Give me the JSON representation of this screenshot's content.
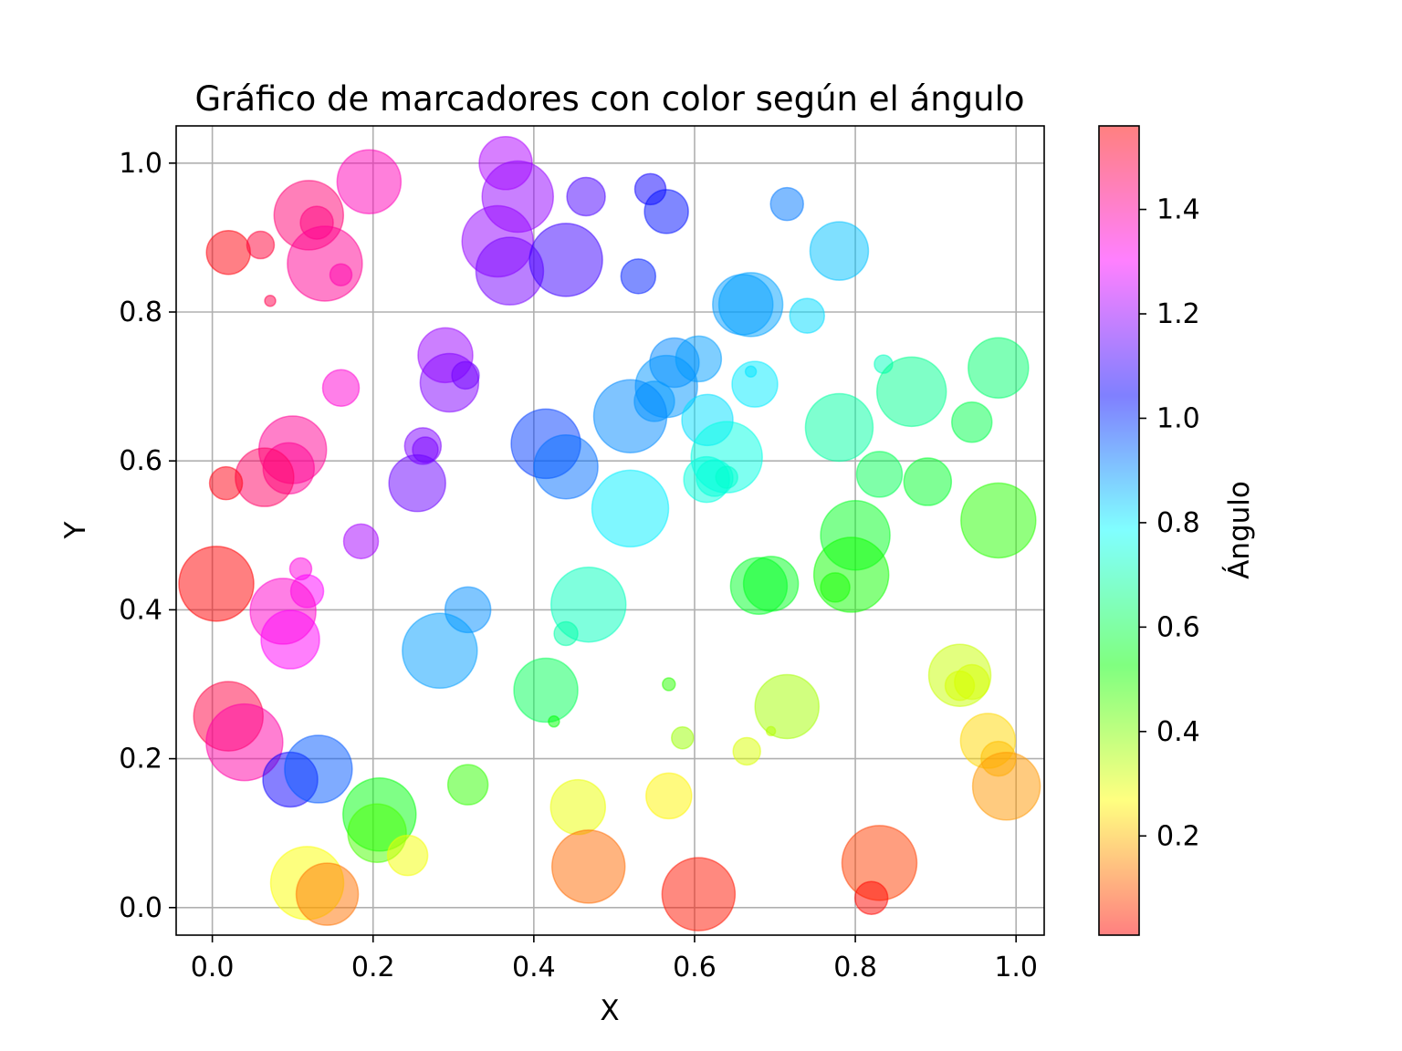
{
  "chart_data": {
    "type": "scatter",
    "title": "Gráfico de marcadores con color según el ángulo",
    "xlabel": "X",
    "ylabel": "Y",
    "xlim": [
      -0.045,
      1.035
    ],
    "ylim": [
      -0.037,
      1.05
    ],
    "xticks": [
      "0.0",
      "0.2",
      "0.4",
      "0.6",
      "0.8",
      "1.0"
    ],
    "yticks": [
      "0.0",
      "0.2",
      "0.4",
      "0.6",
      "0.8",
      "1.0"
    ],
    "grid": true,
    "colorbar": {
      "label": "Ángulo",
      "range": [
        0.01,
        1.56
      ],
      "ticks": [
        "0.2",
        "0.4",
        "0.6",
        "0.8",
        "1.0",
        "1.2",
        "1.4"
      ],
      "colormap": "hsv",
      "alpha": 0.5
    },
    "points": [
      {
        "x": 0.02,
        "y": 0.88,
        "s": 24
      },
      {
        "x": 0.06,
        "y": 0.89,
        "s": 15
      },
      {
        "x": 0.12,
        "y": 0.93,
        "s": 38
      },
      {
        "x": 0.13,
        "y": 0.92,
        "s": 18
      },
      {
        "x": 0.195,
        "y": 0.975,
        "s": 35
      },
      {
        "x": 0.14,
        "y": 0.865,
        "s": 41
      },
      {
        "x": 0.16,
        "y": 0.85,
        "s": 12
      },
      {
        "x": 0.072,
        "y": 0.815,
        "s": 6
      },
      {
        "x": 0.365,
        "y": 1.0,
        "s": 29
      },
      {
        "x": 0.38,
        "y": 0.955,
        "s": 39
      },
      {
        "x": 0.465,
        "y": 0.955,
        "s": 21
      },
      {
        "x": 0.545,
        "y": 0.965,
        "s": 17
      },
      {
        "x": 0.565,
        "y": 0.935,
        "s": 24
      },
      {
        "x": 0.715,
        "y": 0.945,
        "s": 18
      },
      {
        "x": 0.355,
        "y": 0.895,
        "s": 39
      },
      {
        "x": 0.37,
        "y": 0.855,
        "s": 37
      },
      {
        "x": 0.44,
        "y": 0.87,
        "s": 40
      },
      {
        "x": 0.53,
        "y": 0.848,
        "s": 19
      },
      {
        "x": 0.78,
        "y": 0.882,
        "s": 32
      },
      {
        "x": 0.66,
        "y": 0.81,
        "s": 33
      },
      {
        "x": 0.67,
        "y": 0.81,
        "s": 35
      },
      {
        "x": 0.74,
        "y": 0.795,
        "s": 19
      },
      {
        "x": 0.29,
        "y": 0.742,
        "s": 30
      },
      {
        "x": 0.295,
        "y": 0.705,
        "s": 32
      },
      {
        "x": 0.315,
        "y": 0.715,
        "s": 15
      },
      {
        "x": 0.16,
        "y": 0.698,
        "s": 20
      },
      {
        "x": 0.575,
        "y": 0.732,
        "s": 27
      },
      {
        "x": 0.605,
        "y": 0.737,
        "s": 25
      },
      {
        "x": 0.565,
        "y": 0.7,
        "s": 34
      },
      {
        "x": 0.55,
        "y": 0.68,
        "s": 22
      },
      {
        "x": 0.67,
        "y": 0.72,
        "s": 6
      },
      {
        "x": 0.675,
        "y": 0.703,
        "s": 25
      },
      {
        "x": 0.835,
        "y": 0.73,
        "s": 10
      },
      {
        "x": 0.87,
        "y": 0.693,
        "s": 38
      },
      {
        "x": 0.978,
        "y": 0.725,
        "s": 33
      },
      {
        "x": 0.52,
        "y": 0.66,
        "s": 40
      },
      {
        "x": 0.616,
        "y": 0.655,
        "s": 28
      },
      {
        "x": 0.78,
        "y": 0.645,
        "s": 37
      },
      {
        "x": 0.945,
        "y": 0.652,
        "s": 22
      },
      {
        "x": 0.1,
        "y": 0.615,
        "s": 37
      },
      {
        "x": 0.095,
        "y": 0.59,
        "s": 28
      },
      {
        "x": 0.065,
        "y": 0.578,
        "s": 32
      },
      {
        "x": 0.017,
        "y": 0.57,
        "s": 18
      },
      {
        "x": 0.262,
        "y": 0.62,
        "s": 20
      },
      {
        "x": 0.265,
        "y": 0.615,
        "s": 14
      },
      {
        "x": 0.255,
        "y": 0.57,
        "s": 31
      },
      {
        "x": 0.415,
        "y": 0.623,
        "s": 38
      },
      {
        "x": 0.44,
        "y": 0.592,
        "s": 35
      },
      {
        "x": 0.64,
        "y": 0.605,
        "s": 39
      },
      {
        "x": 0.615,
        "y": 0.575,
        "s": 25
      },
      {
        "x": 0.625,
        "y": 0.577,
        "s": 20
      },
      {
        "x": 0.64,
        "y": 0.578,
        "s": 12
      },
      {
        "x": 0.83,
        "y": 0.582,
        "s": 25
      },
      {
        "x": 0.89,
        "y": 0.572,
        "s": 26
      },
      {
        "x": 0.52,
        "y": 0.536,
        "s": 42
      },
      {
        "x": 0.8,
        "y": 0.5,
        "s": 38
      },
      {
        "x": 0.795,
        "y": 0.447,
        "s": 41
      },
      {
        "x": 0.775,
        "y": 0.43,
        "s": 16
      },
      {
        "x": 0.978,
        "y": 0.52,
        "s": 41
      },
      {
        "x": 0.185,
        "y": 0.492,
        "s": 19
      },
      {
        "x": 0.005,
        "y": 0.435,
        "s": 41
      },
      {
        "x": 0.11,
        "y": 0.455,
        "s": 12
      },
      {
        "x": 0.118,
        "y": 0.425,
        "s": 18
      },
      {
        "x": 0.088,
        "y": 0.398,
        "s": 36
      },
      {
        "x": 0.097,
        "y": 0.36,
        "s": 32
      },
      {
        "x": 0.318,
        "y": 0.4,
        "s": 25
      },
      {
        "x": 0.283,
        "y": 0.345,
        "s": 41
      },
      {
        "x": 0.468,
        "y": 0.407,
        "s": 41
      },
      {
        "x": 0.44,
        "y": 0.368,
        "s": 13
      },
      {
        "x": 0.68,
        "y": 0.432,
        "s": 31
      },
      {
        "x": 0.695,
        "y": 0.435,
        "s": 30
      },
      {
        "x": 0.415,
        "y": 0.292,
        "s": 35
      },
      {
        "x": 0.425,
        "y": 0.25,
        "s": 6
      },
      {
        "x": 0.568,
        "y": 0.3,
        "s": 7
      },
      {
        "x": 0.585,
        "y": 0.228,
        "s": 12
      },
      {
        "x": 0.665,
        "y": 0.21,
        "s": 15
      },
      {
        "x": 0.695,
        "y": 0.237,
        "s": 5
      },
      {
        "x": 0.715,
        "y": 0.27,
        "s": 35
      },
      {
        "x": 0.93,
        "y": 0.312,
        "s": 34
      },
      {
        "x": 0.93,
        "y": 0.298,
        "s": 16
      },
      {
        "x": 0.945,
        "y": 0.303,
        "s": 19
      },
      {
        "x": 0.965,
        "y": 0.224,
        "s": 30
      },
      {
        "x": 0.978,
        "y": 0.2,
        "s": 19
      },
      {
        "x": 0.988,
        "y": 0.163,
        "s": 37
      },
      {
        "x": 0.02,
        "y": 0.257,
        "s": 38
      },
      {
        "x": 0.04,
        "y": 0.222,
        "s": 42
      },
      {
        "x": 0.097,
        "y": 0.172,
        "s": 30
      },
      {
        "x": 0.132,
        "y": 0.186,
        "s": 37
      },
      {
        "x": 0.318,
        "y": 0.165,
        "s": 22
      },
      {
        "x": 0.208,
        "y": 0.125,
        "s": 40
      },
      {
        "x": 0.205,
        "y": 0.1,
        "s": 32
      },
      {
        "x": 0.243,
        "y": 0.07,
        "s": 22
      },
      {
        "x": 0.455,
        "y": 0.135,
        "s": 30
      },
      {
        "x": 0.568,
        "y": 0.15,
        "s": 25
      },
      {
        "x": 0.118,
        "y": 0.033,
        "s": 40
      },
      {
        "x": 0.143,
        "y": 0.018,
        "s": 34
      },
      {
        "x": 0.468,
        "y": 0.055,
        "s": 40
      },
      {
        "x": 0.605,
        "y": 0.018,
        "s": 40
      },
      {
        "x": 0.83,
        "y": 0.06,
        "s": 41
      },
      {
        "x": 0.82,
        "y": 0.013,
        "s": 18
      }
    ]
  }
}
